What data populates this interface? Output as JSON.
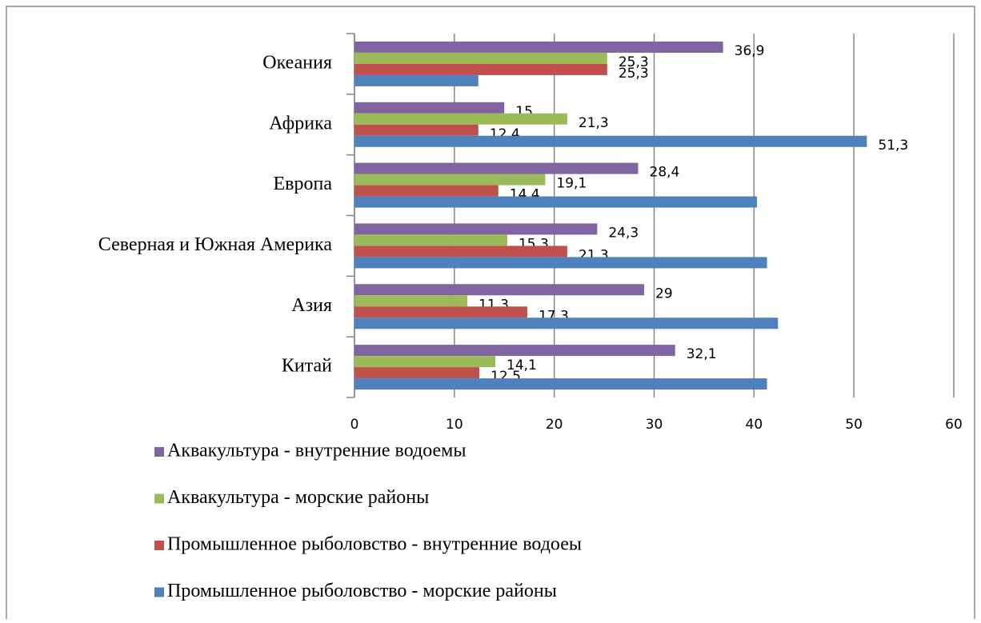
{
  "chart_data": {
    "type": "hbar",
    "categories": [
      "Океания",
      "Африка",
      "Европа",
      "Северная и Южная Америка",
      "Азия",
      "Китай"
    ],
    "series": [
      {
        "name": "Аквакультура - внутренние водоемы",
        "color": "#8064a2",
        "values": [
          36.9,
          15,
          28.4,
          24.3,
          29,
          32.1
        ],
        "value_labels": [
          "36,9",
          "15",
          "28,4",
          "24,3",
          "29",
          "32,1"
        ]
      },
      {
        "name": "Аквакультура - морские районы",
        "color": "#9bbb59",
        "values": [
          25.3,
          21.3,
          19.1,
          15.3,
          11.3,
          14.1
        ],
        "value_labels": [
          "25,3",
          "21,3",
          "19,1",
          "15,3",
          "11,3",
          "14,1"
        ]
      },
      {
        "name": "Промышленное рыболовство - внутренние водоеы",
        "color": "#c0504d",
        "values": [
          25.3,
          12.4,
          14.4,
          21.3,
          17.3,
          12.5
        ],
        "value_labels": [
          "25,3",
          "12,4",
          "14,4",
          "21,3",
          "17,3",
          "12,5"
        ]
      },
      {
        "name": "Промышленное рыболовство - морские районы",
        "color": "#4f81bd",
        "values": [
          12.4,
          51.3,
          40.3,
          41.3,
          42.4,
          41.3
        ],
        "value_labels": [
          null,
          "51,3",
          null,
          null,
          null,
          null
        ]
      }
    ],
    "xlim": [
      0,
      60
    ],
    "xticks": [
      0,
      10,
      20,
      30,
      40,
      50,
      60
    ],
    "grid": true
  }
}
